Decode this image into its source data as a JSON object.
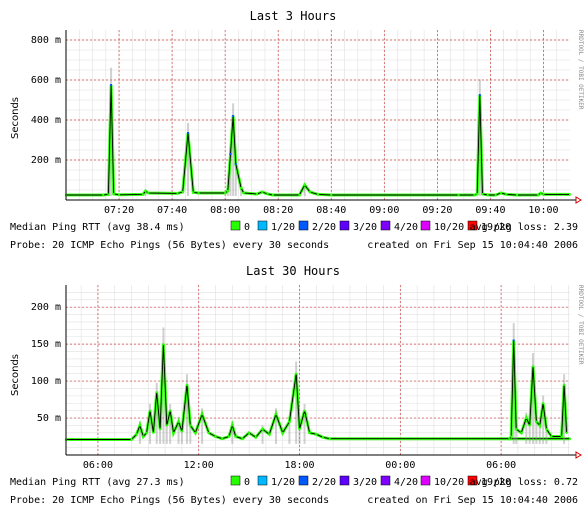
{
  "watermark": "RRDTOOL / TOBI OETIKER",
  "legend_colors": {
    "0": "#26ff00",
    "1/20": "#00b8ff",
    "2/20": "#0059ff",
    "3/20": "#5e00ff",
    "4/20": "#7e00ff",
    "10/20": "#dd00ff",
    "19/20": "#ff0000"
  },
  "chart_data": [
    {
      "type": "line",
      "title": "Last 3 Hours",
      "ylabel": "Seconds",
      "ylim": [
        0,
        850
      ],
      "yticks": [
        {
          "value": 200,
          "label": "200 m"
        },
        {
          "value": 400,
          "label": "400 m"
        },
        {
          "value": 600,
          "label": "600 m"
        },
        {
          "value": 800,
          "label": "800 m"
        }
      ],
      "x_ticks": [
        "07:20",
        "07:40",
        "08:00",
        "08:20",
        "08:40",
        "09:00",
        "09:20",
        "09:40",
        "10:00"
      ],
      "x_range_minutes": [
        420,
        610
      ],
      "x_tick_start_minutes": 440,
      "x_tick_step_minutes": 20,
      "grid": true,
      "series": [
        {
          "name": "Median Ping RTT",
          "points": [
            [
              420,
              25
            ],
            [
              434,
              25
            ],
            [
              436,
              28
            ],
            [
              437,
              575
            ],
            [
              438,
              30
            ],
            [
              440,
              26
            ],
            [
              449,
              28
            ],
            [
              450,
              45
            ],
            [
              451,
              35
            ],
            [
              462,
              33
            ],
            [
              464,
              40
            ],
            [
              466,
              335
            ],
            [
              468,
              38
            ],
            [
              470,
              35
            ],
            [
              480,
              35
            ],
            [
              481,
              45
            ],
            [
              482,
              230
            ],
            [
              483,
              420
            ],
            [
              484,
              180
            ],
            [
              486,
              60
            ],
            [
              487,
              35
            ],
            [
              492,
              30
            ],
            [
              494,
              40
            ],
            [
              496,
              30
            ],
            [
              498,
              25
            ],
            [
              508,
              25
            ],
            [
              510,
              75
            ],
            [
              512,
              40
            ],
            [
              515,
              28
            ],
            [
              520,
              25
            ],
            [
              568,
              25
            ],
            [
              574,
              25
            ],
            [
              575,
              30
            ],
            [
              576,
              525
            ],
            [
              577,
              30
            ],
            [
              579,
              25
            ],
            [
              582,
              25
            ],
            [
              584,
              35
            ],
            [
              586,
              28
            ],
            [
              590,
              25
            ],
            [
              598,
              25
            ],
            [
              599,
              35
            ],
            [
              600,
              28
            ],
            [
              610,
              28
            ]
          ]
        }
      ],
      "legend": {
        "prefix": "Median Ping RTT (avg 38.4 ms)",
        "items": [
          "0",
          "1/20",
          "2/20",
          "3/20",
          "4/20",
          "10/20",
          "19/20"
        ],
        "loss": "avg pkg loss: 2.39"
      },
      "probe": "Probe: 20 ICMP Echo Pings (56 Bytes) every 30 seconds",
      "created": "created on Fri Sep 15 10:04:40 2006"
    },
    {
      "type": "line",
      "title": "Last 30 Hours",
      "ylabel": "Seconds",
      "ylim": [
        0,
        230
      ],
      "yticks": [
        {
          "value": 50,
          "label": "50 m"
        },
        {
          "value": 100,
          "label": "100 m"
        },
        {
          "value": 150,
          "label": "150 m"
        },
        {
          "value": 200,
          "label": "200 m"
        }
      ],
      "x_ticks": [
        "06:00",
        "12:00",
        "18:00",
        "00:00",
        "06:00"
      ],
      "x_range_hours": [
        4.1,
        34.1
      ],
      "x_tick_start_hours": 6,
      "x_tick_step_hours": 6,
      "grid": true,
      "series": [
        {
          "name": "Median Ping RTT",
          "points": [
            [
              4.1,
              21
            ],
            [
              8.0,
              21
            ],
            [
              8.3,
              28
            ],
            [
              8.5,
              40
            ],
            [
              8.7,
              25
            ],
            [
              8.9,
              30
            ],
            [
              9.1,
              60
            ],
            [
              9.3,
              30
            ],
            [
              9.5,
              85
            ],
            [
              9.7,
              35
            ],
            [
              9.9,
              150
            ],
            [
              10.1,
              40
            ],
            [
              10.3,
              60
            ],
            [
              10.5,
              30
            ],
            [
              10.8,
              45
            ],
            [
              11.0,
              32
            ],
            [
              11.3,
              95
            ],
            [
              11.5,
              40
            ],
            [
              11.8,
              30
            ],
            [
              12.2,
              55
            ],
            [
              12.6,
              30
            ],
            [
              13.0,
              25
            ],
            [
              13.4,
              22
            ],
            [
              13.8,
              25
            ],
            [
              14.0,
              40
            ],
            [
              14.2,
              25
            ],
            [
              14.6,
              22
            ],
            [
              15.0,
              30
            ],
            [
              15.4,
              24
            ],
            [
              15.8,
              35
            ],
            [
              16.2,
              28
            ],
            [
              16.6,
              55
            ],
            [
              17.0,
              30
            ],
            [
              17.4,
              45
            ],
            [
              17.8,
              110
            ],
            [
              18.0,
              35
            ],
            [
              18.3,
              60
            ],
            [
              18.6,
              30
            ],
            [
              19.0,
              28
            ],
            [
              19.4,
              24
            ],
            [
              19.8,
              22
            ],
            [
              34.1,
              22
            ]
          ],
          "tail": [
            [
              6.5,
              21
            ],
            [
              6.6,
              25
            ],
            [
              6.75,
              155
            ],
            [
              6.9,
              35
            ],
            [
              7.2,
              30
            ],
            [
              7.5,
              50
            ],
            [
              7.7,
              40
            ],
            [
              7.9,
              120
            ],
            [
              8.1,
              45
            ],
            [
              8.3,
              40
            ],
            [
              8.5,
              70
            ],
            [
              8.7,
              35
            ],
            [
              9.0,
              25
            ],
            [
              9.6,
              25
            ],
            [
              9.75,
              95
            ],
            [
              9.9,
              30
            ]
          ]
        }
      ],
      "legend": {
        "prefix": "Median Ping RTT (avg 27.3 ms)",
        "items": [
          "0",
          "1/20",
          "2/20",
          "3/20",
          "4/20",
          "10/20",
          "19/20"
        ],
        "loss": "avg pkg loss: 0.72"
      },
      "probe": "Probe: 20 ICMP Echo Pings (56 Bytes) every 30 seconds",
      "created": "created on Fri Sep 15 10:04:40 2006"
    }
  ]
}
